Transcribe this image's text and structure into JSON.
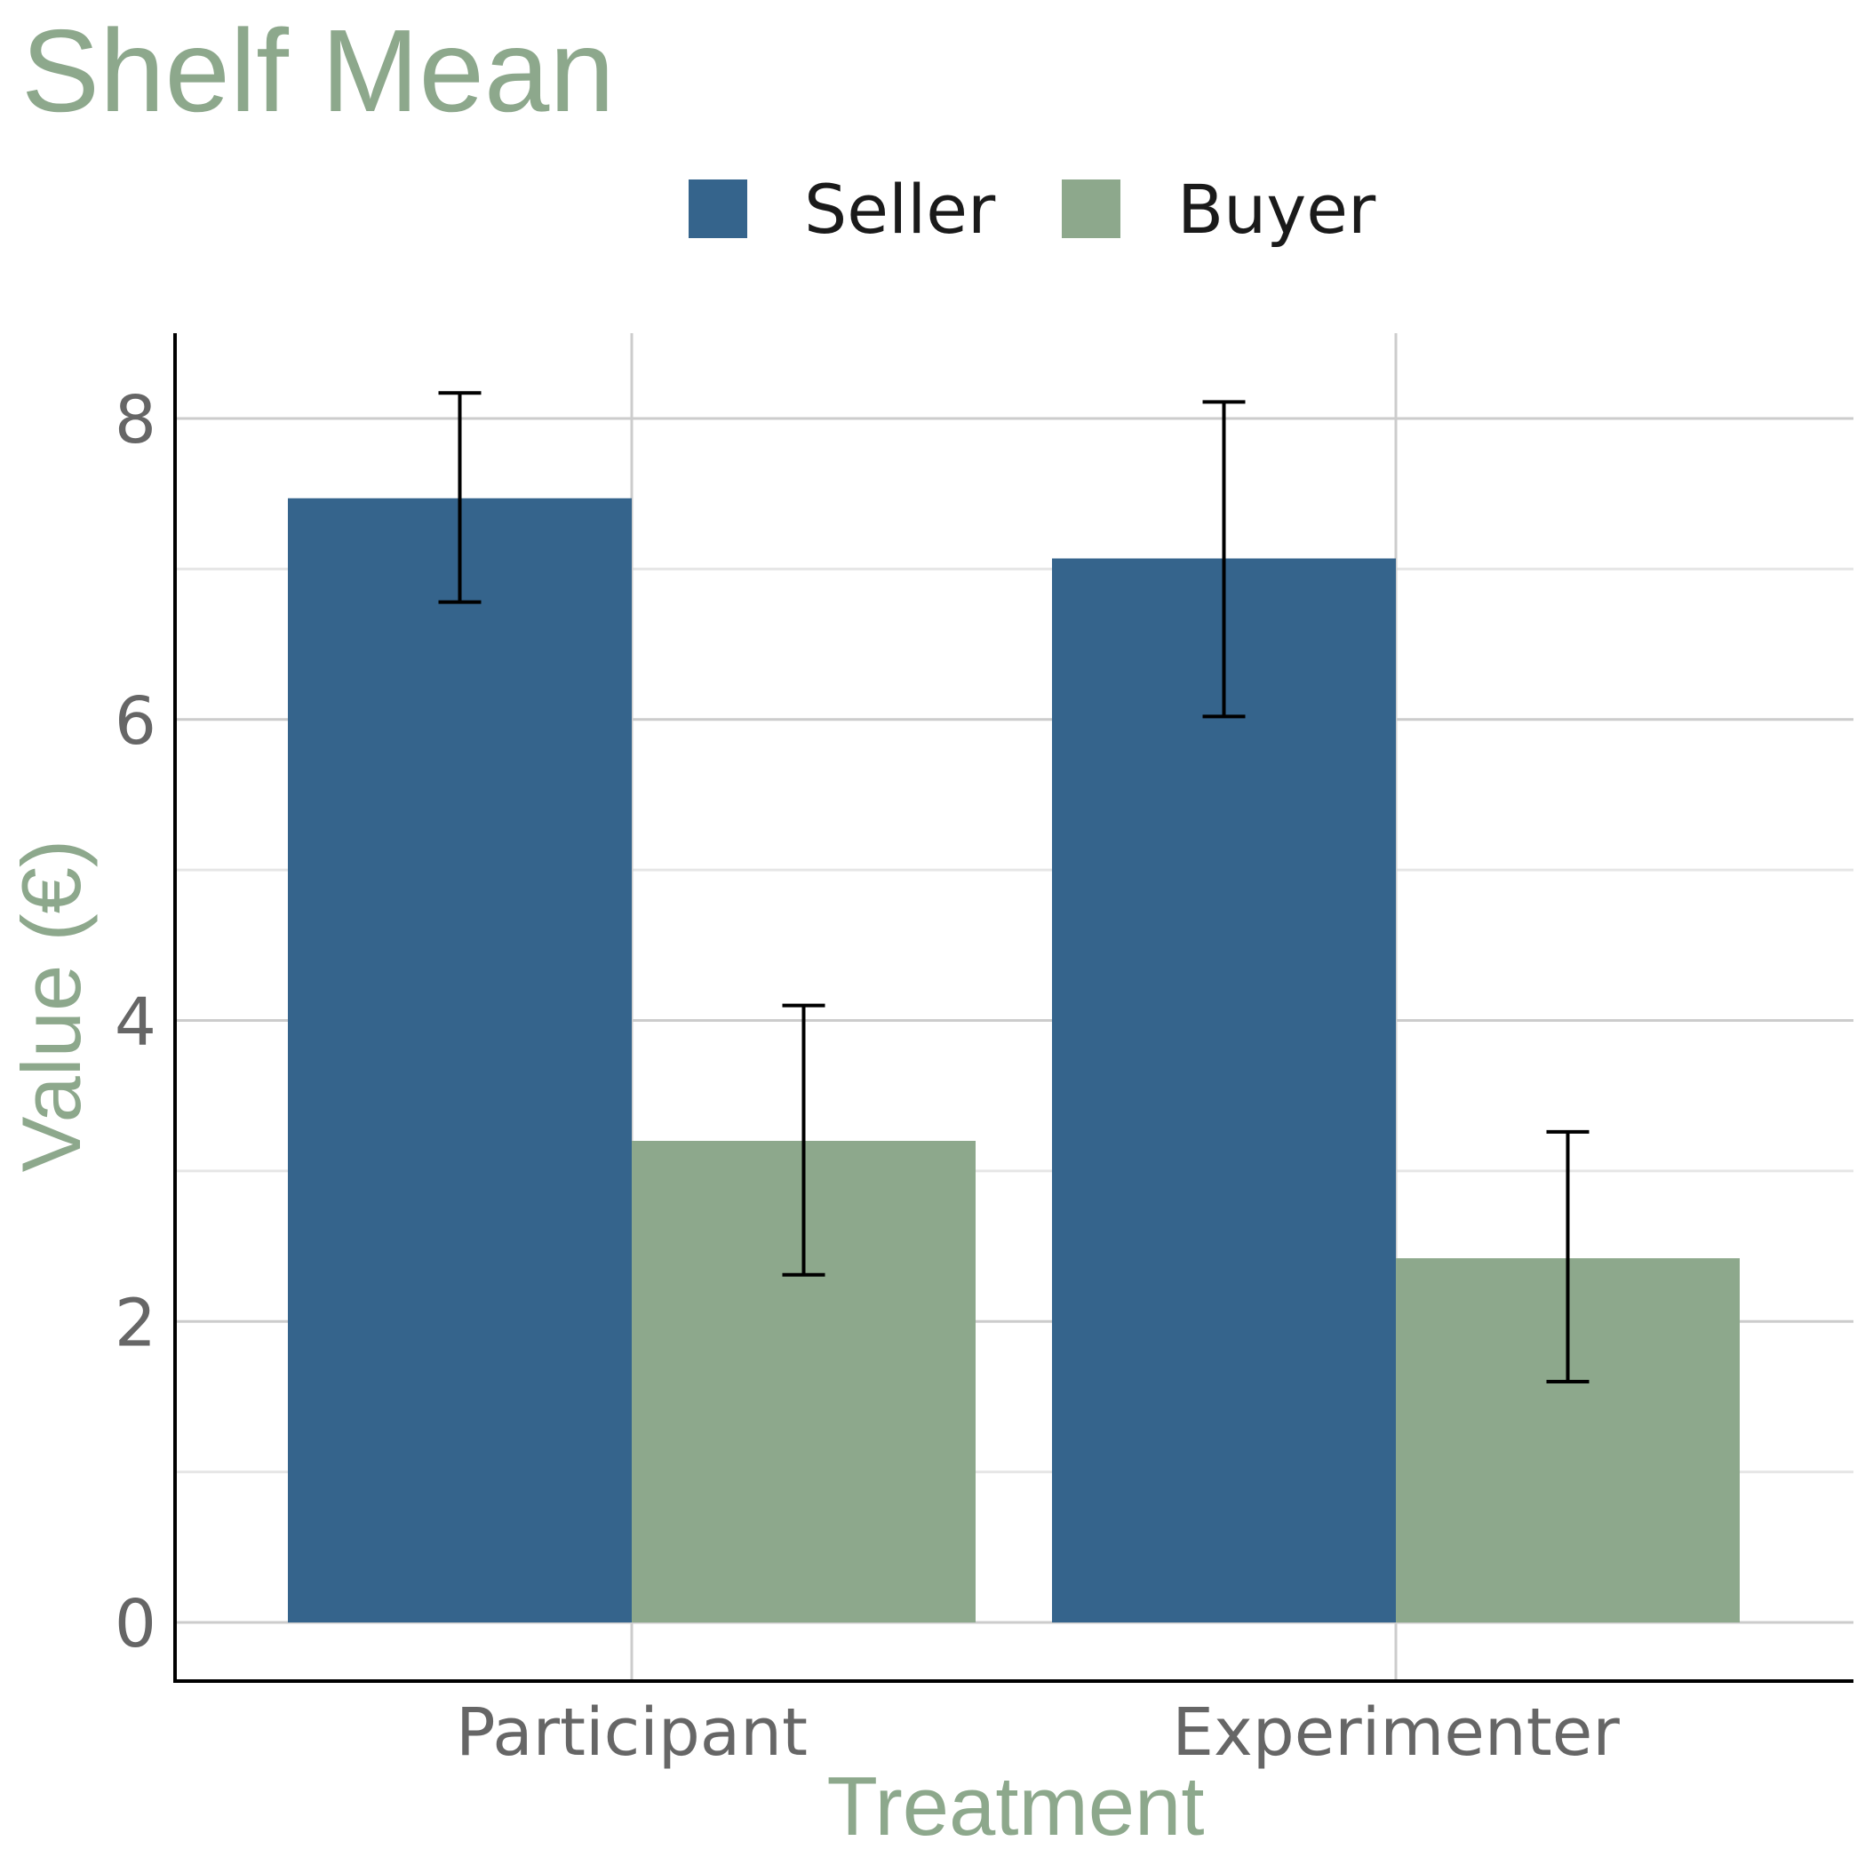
{
  "chart_data": {
    "type": "bar",
    "title": "Shelf Mean",
    "xlabel": "Treatment",
    "ylabel": "Value (€)",
    "categories": [
      "Participant",
      "Experimenter"
    ],
    "series": [
      {
        "name": "Seller",
        "color": "#35648c",
        "values": [
          7.47,
          7.07
        ],
        "error_low": [
          6.78,
          6.02
        ],
        "error_high": [
          8.17,
          8.11
        ]
      },
      {
        "name": "Buyer",
        "color": "#8da88c",
        "values": [
          3.2,
          2.42
        ],
        "error_low": [
          2.31,
          1.6
        ],
        "error_high": [
          4.1,
          3.26
        ]
      }
    ],
    "ylim": [
      -0.4,
      8.6
    ],
    "yticks": [
      0,
      2,
      4,
      6,
      8
    ],
    "ytick_labels": [
      "0",
      "2",
      "4",
      "6",
      "8"
    ],
    "minor_yticks": [
      1,
      3,
      5,
      7
    ],
    "grid": true,
    "legend_position": "top"
  },
  "colors": {
    "title": "#8da88c",
    "axis_title": "#8da88c",
    "tick_label": "#666666",
    "legend_text": "#1a1a1a",
    "grid_major": "#cccccc",
    "grid_minor": "#e6e6e6",
    "axis_line": "#000000",
    "error_bar": "#000000"
  }
}
